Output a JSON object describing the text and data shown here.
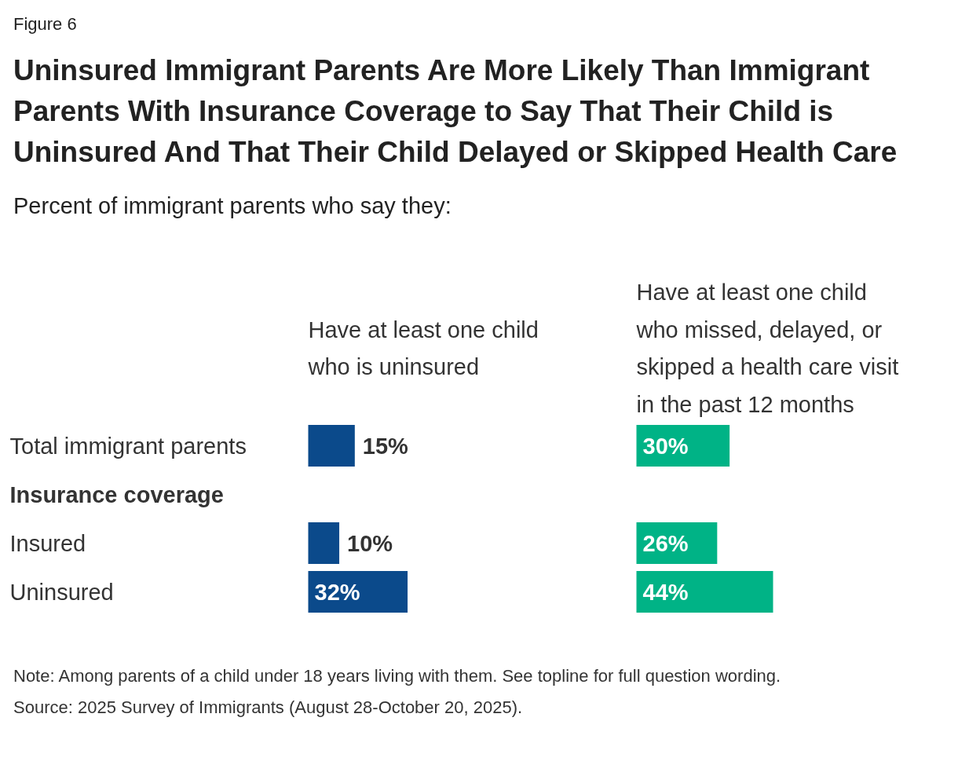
{
  "chart_data": [
    {
      "type": "other",
      "title": "Uninsured Immigrant Parents Are More Likely Than Immigrant Parents With Insurance Coverage to Say That Their Child is Uninsured And That Their Child Delayed or Skipped Health Care",
      "subtitle": "Percent of immigrant parents who say they:",
      "annotations": [
        "Figure 6",
        "Note: Among parents of a child under 18 years living with them. See topline for full question wording.",
        "Source: 2025 Survey of Immigrants (August 28-October 20, 2025)."
      ]
    },
    {
      "type": "bar",
      "orientation": "horizontal",
      "title": "Have at least one child\nwho is uninsured",
      "categories": [
        "Total immigrant parents",
        "Insurance coverage",
        "Insured",
        "Uninsured"
      ],
      "values": [
        15,
        null,
        10,
        32
      ],
      "value_labels": [
        "15%",
        null,
        "10%",
        "32%"
      ],
      "color": "#0b4a8b",
      "tick_labels": "y"
    },
    {
      "type": "bar",
      "orientation": "horizontal",
      "title": "Have at least one child\nwho missed, delayed, or\nskipped a health care visit\nin the past 12 months",
      "categories": [
        null,
        null,
        null,
        null
      ],
      "values": [
        30,
        null,
        26,
        44
      ],
      "value_labels": [
        "30%",
        null,
        "26%",
        "44%"
      ],
      "color": "#00b386",
      "tick_labels": false
    }
  ]
}
